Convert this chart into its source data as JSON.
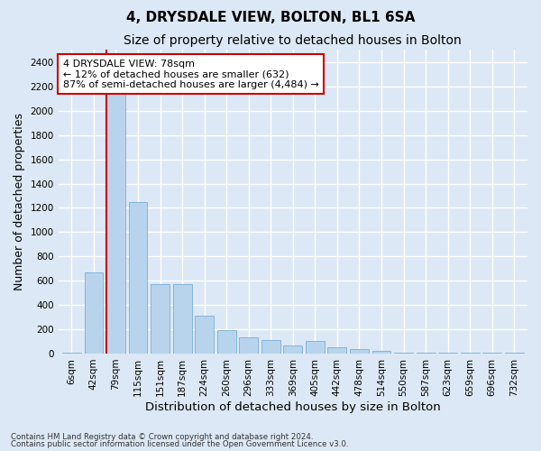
{
  "title": "4, DRYSDALE VIEW, BOLTON, BL1 6SA",
  "subtitle": "Size of property relative to detached houses in Bolton",
  "xlabel": "Distribution of detached houses by size in Bolton",
  "ylabel": "Number of detached properties",
  "footer_line1": "Contains HM Land Registry data © Crown copyright and database right 2024.",
  "footer_line2": "Contains public sector information licensed under the Open Government Licence v3.0.",
  "bar_labels": [
    "6sqm",
    "42sqm",
    "79sqm",
    "115sqm",
    "151sqm",
    "187sqm",
    "224sqm",
    "260sqm",
    "296sqm",
    "333sqm",
    "369sqm",
    "405sqm",
    "442sqm",
    "478sqm",
    "514sqm",
    "550sqm",
    "587sqm",
    "623sqm",
    "659sqm",
    "696sqm",
    "732sqm"
  ],
  "bar_values": [
    10,
    670,
    2200,
    1250,
    570,
    570,
    310,
    190,
    130,
    110,
    70,
    100,
    50,
    35,
    20,
    10,
    10,
    10,
    5,
    5,
    5
  ],
  "bar_color": "#b8d4ec",
  "bar_edge_color": "#7aaed4",
  "highlight_bar_index": 2,
  "highlight_line_color": "#cc0000",
  "annotation_text_line1": "4 DRYSDALE VIEW: 78sqm",
  "annotation_text_line2": "← 12% of detached houses are smaller (632)",
  "annotation_text_line3": "87% of semi-detached houses are larger (4,484) →",
  "annotation_box_color": "#ffffff",
  "annotation_box_edge_color": "#cc0000",
  "ylim": [
    0,
    2500
  ],
  "yticks": [
    0,
    200,
    400,
    600,
    800,
    1000,
    1200,
    1400,
    1600,
    1800,
    2000,
    2200,
    2400
  ],
  "bg_color": "#dce8f5",
  "plot_bg_color": "#dce8f5",
  "grid_color": "#ffffff",
  "title_fontsize": 11,
  "subtitle_fontsize": 10,
  "axis_label_fontsize": 9,
  "tick_fontsize": 7.5,
  "annotation_fontsize": 8
}
